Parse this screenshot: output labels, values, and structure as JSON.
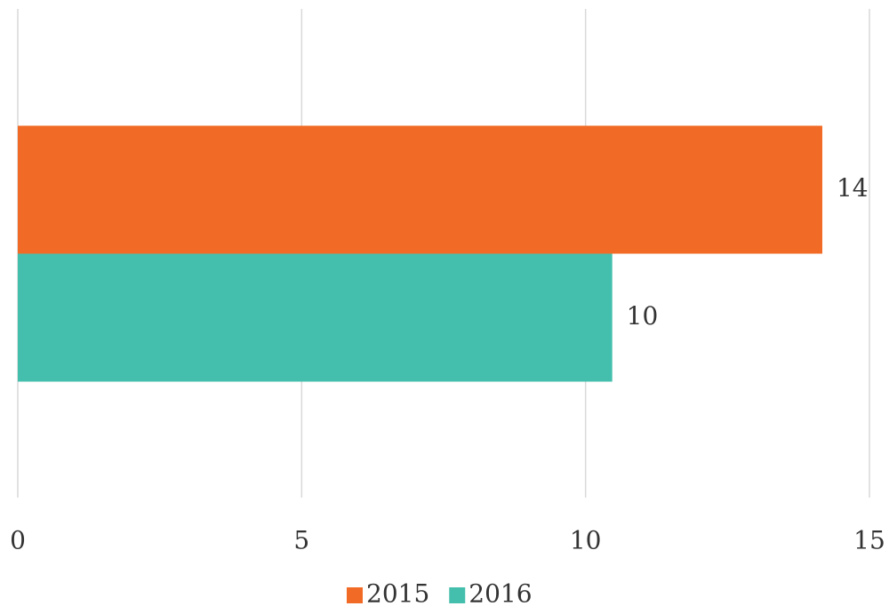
{
  "chart_data": {
    "type": "bar",
    "orientation": "horizontal",
    "categories": [
      null
    ],
    "series": [
      {
        "name": "2015",
        "color": "#f26b26",
        "values": [
          14.17
        ],
        "value_labels": [
          "14"
        ]
      },
      {
        "name": "2016",
        "color": "#45bfad",
        "values": [
          10.47
        ],
        "value_labels": [
          "10"
        ]
      }
    ],
    "xlim": [
      0,
      15
    ],
    "xticks": [
      0,
      5,
      10,
      15
    ],
    "grid": true,
    "legend": "bottom"
  }
}
